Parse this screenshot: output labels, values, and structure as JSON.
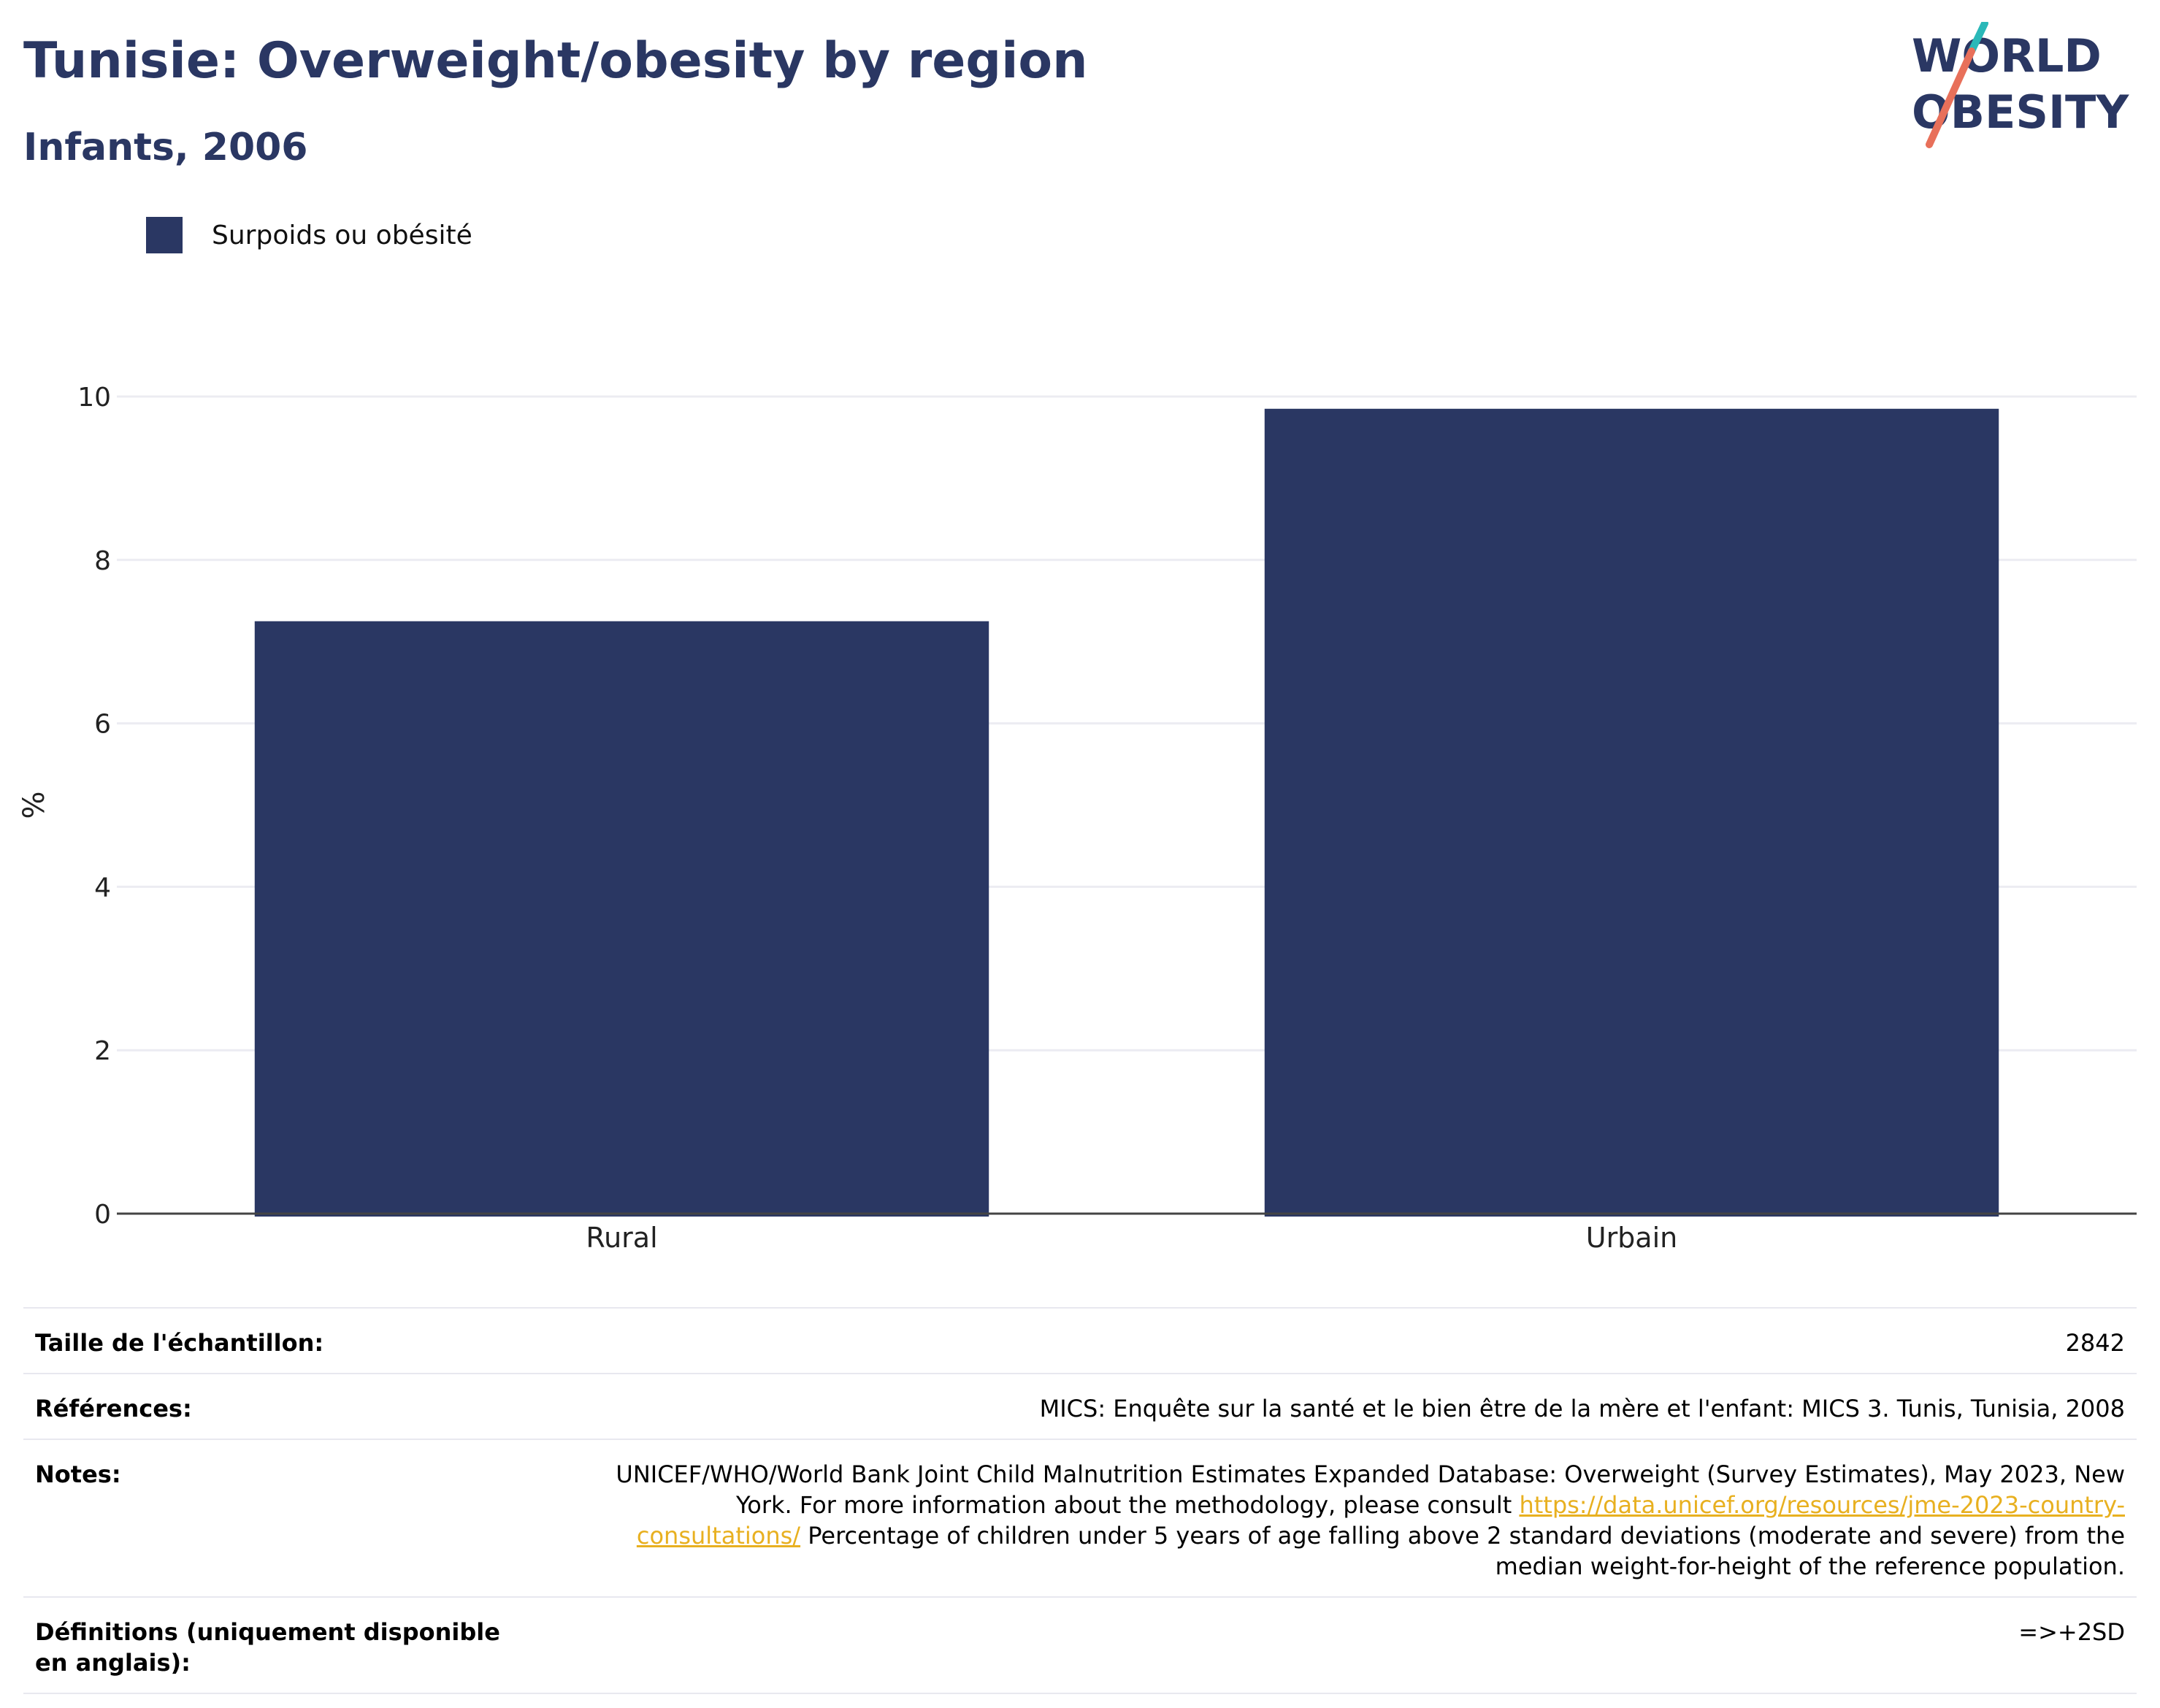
{
  "title": "Tunisie: Overweight/obesity by region",
  "subtitle": "Infants, 2006",
  "logo": {
    "line1": "WORLD",
    "line2": "OBESITY",
    "colors": {
      "navy": "#2a3763",
      "teal": "#2ab8b8",
      "coral": "#e8705a"
    }
  },
  "chart_data": {
    "type": "bar",
    "categories": [
      "Rural",
      "Urbain"
    ],
    "series": [
      {
        "name": "Surpoids ou obésité",
        "values": [
          7.25,
          9.85
        ]
      }
    ],
    "xlabel": "",
    "ylabel": "%",
    "ylim": [
      0,
      10
    ],
    "yticks": [
      0,
      2,
      4,
      6,
      8,
      10
    ],
    "grid": true,
    "legend": "top-left",
    "bar_color": "#2a3763"
  },
  "info": {
    "sample_label": "Taille de l'échantillon:",
    "sample_value": "2842",
    "references_label": "Références:",
    "references_value": "MICS: Enquête sur la santé et le bien être de la mère et l'enfant: MICS 3. Tunis, Tunisia, 2008",
    "notes_label": "Notes:",
    "notes_value_1": "UNICEF/WHO/World Bank Joint Child Malnutrition Estimates Expanded Database: Overweight (Survey Estimates), May 2023, New York. For more information about the methodology, please consult ",
    "notes_link": "https://data.unicef.org/resources/jme-2023-country-consultations/",
    "notes_value_2": " Percentage of children under 5 years of age falling above 2 standard deviations (moderate and severe) from the median weight-for-height of the reference population.",
    "definitions_label": "Définitions (uniquement disponible en anglais):",
    "definitions_value": "=>+2SD"
  }
}
